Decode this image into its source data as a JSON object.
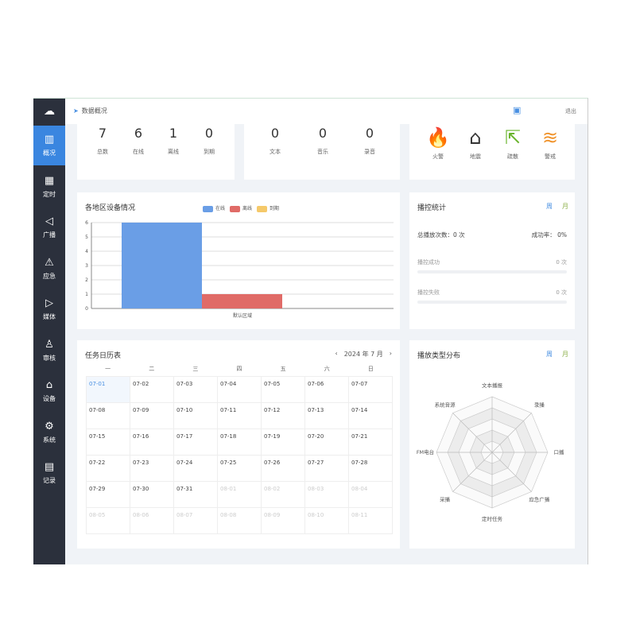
{
  "sidebar": {
    "items": [
      {
        "label": "概况",
        "icon": "dashboard-icon",
        "active": true
      },
      {
        "label": "定时",
        "icon": "schedule-icon"
      },
      {
        "label": "广播",
        "icon": "speaker-icon"
      },
      {
        "label": "应急",
        "icon": "alarm-icon"
      },
      {
        "label": "媒体",
        "icon": "media-icon"
      },
      {
        "label": "审核",
        "icon": "stamp-icon"
      },
      {
        "label": "设备",
        "icon": "device-icon"
      },
      {
        "label": "系统",
        "icon": "gear-icon"
      },
      {
        "label": "记录",
        "icon": "record-icon"
      }
    ]
  },
  "header": {
    "breadcrumb": "数据概况",
    "logout": "退出"
  },
  "device_stats": [
    {
      "value": "7",
      "label": "总数"
    },
    {
      "value": "6",
      "label": "在线"
    },
    {
      "value": "1",
      "label": "离线"
    },
    {
      "value": "0",
      "label": "到期"
    }
  ],
  "media_stats": [
    {
      "value": "0",
      "label": "文本"
    },
    {
      "value": "0",
      "label": "音乐"
    },
    {
      "value": "0",
      "label": "录音"
    }
  ],
  "emergency": [
    {
      "label": "火警",
      "color": "#d9342b"
    },
    {
      "label": "地震",
      "color": "#333333"
    },
    {
      "label": "疏散",
      "color": "#6ab42d"
    },
    {
      "label": "警戒",
      "color": "#f0932b"
    }
  ],
  "chart_data": [
    {
      "type": "bar",
      "title": "各地区设备情况",
      "categories": [
        "默认区域"
      ],
      "series": [
        {
          "name": "在线",
          "values": [
            6
          ],
          "color": "#6a9ee6"
        },
        {
          "name": "离线",
          "values": [
            1
          ],
          "color": "#e06b67"
        },
        {
          "name": "到期",
          "values": [
            0
          ],
          "color": "#f5c96a"
        }
      ],
      "ylim": [
        0,
        6
      ],
      "yticks": [
        "0",
        "1",
        "2",
        "3",
        "4",
        "5",
        "6"
      ],
      "grid": true,
      "legend": "top"
    },
    {
      "type": "radar",
      "title": "播放类型分布",
      "axes": [
        "文本播报",
        "录播",
        "口播",
        "应急广播",
        "定时任务",
        "采播",
        "FM电台",
        "系统音源"
      ],
      "values": [
        0,
        0,
        0,
        0,
        0,
        0,
        0,
        0
      ]
    }
  ],
  "playback": {
    "title": "播控统计",
    "week": "周",
    "month": "月",
    "total": "总播放次数：0 次",
    "rate": "成功率：  0%",
    "success_label": "播控成功",
    "success_value": "0 次",
    "fail_label": "播控失败",
    "fail_value": "0 次"
  },
  "radar_toggle": {
    "week": "周",
    "month": "月"
  },
  "calendar": {
    "title": "任务日历表",
    "month": "2024 年 7 月",
    "prev": "‹",
    "next": "›",
    "weekdays": [
      "一",
      "二",
      "三",
      "四",
      "五",
      "六",
      "日"
    ],
    "days": [
      "07-01",
      "07-02",
      "07-03",
      "07-04",
      "07-05",
      "07-06",
      "07-07",
      "07-08",
      "07-09",
      "07-10",
      "07-11",
      "07-12",
      "07-13",
      "07-14",
      "07-15",
      "07-16",
      "07-17",
      "07-18",
      "07-19",
      "07-20",
      "07-21",
      "07-22",
      "07-23",
      "07-24",
      "07-25",
      "07-26",
      "07-27",
      "07-28",
      "07-29",
      "07-30",
      "07-31",
      "08-01",
      "08-02",
      "08-03",
      "08-04",
      "08-05",
      "08-06",
      "08-07",
      "08-08",
      "08-09",
      "08-10",
      "08-11"
    ]
  }
}
